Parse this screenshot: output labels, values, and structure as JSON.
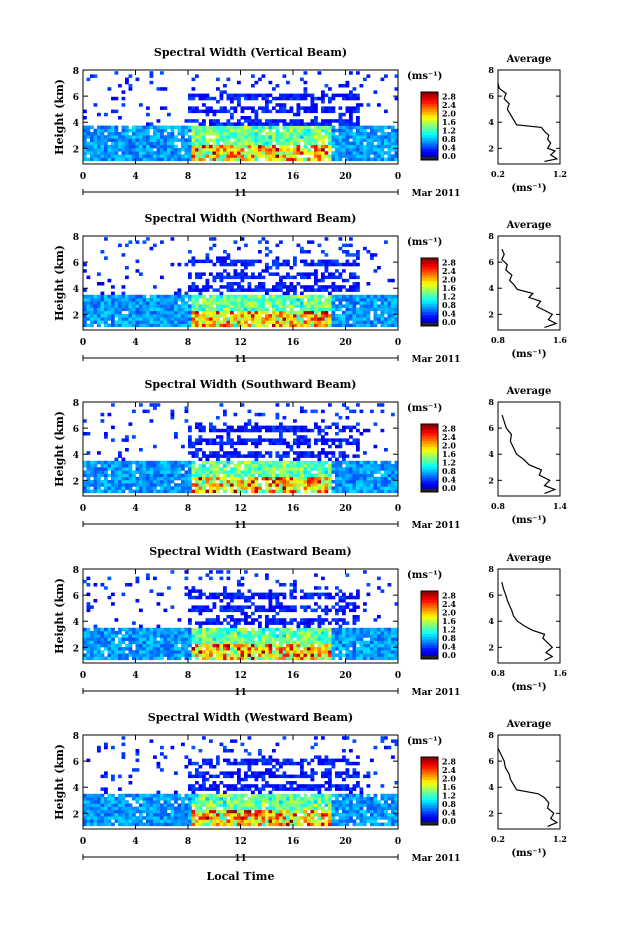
{
  "figure": {
    "xlabel": "Local Time",
    "date_label": "Mar 2011",
    "day_label": "11",
    "unit_label": "(ms⁻¹)",
    "avg_title": "Average",
    "avg_xlabel": "(ms⁻¹)"
  },
  "chart_data": [
    {
      "type": "heatmap",
      "title": "Spectral Width (Vertical Beam)",
      "ylabel": "Height (km)",
      "x_ticks": [
        "0",
        "4",
        "8",
        "12",
        "16",
        "20",
        "0"
      ],
      "xlim": [
        0,
        24
      ],
      "y_ticks": [
        "2",
        "4",
        "6",
        "8"
      ],
      "ylim": [
        0.8,
        8
      ],
      "colorbar": {
        "range": [
          0,
          2.8
        ],
        "tick_labels": [
          "0.0",
          "0.4",
          "0.8",
          "1.2",
          "1.6",
          "2.0",
          "2.4",
          "2.8"
        ]
      },
      "dense_top_km": 3.7,
      "scatter_top_km": 6.3,
      "average_profile": {
        "xlim": [
          0.2,
          1.2
        ],
        "x_tick_labels": [
          "0.2",
          "1.2"
        ],
        "y_tick_labels": [
          "2",
          "4",
          "6",
          "8"
        ],
        "points": [
          [
            0.95,
            1.0
          ],
          [
            1.15,
            1.2
          ],
          [
            1.05,
            1.5
          ],
          [
            1.12,
            1.8
          ],
          [
            1.0,
            2.0
          ],
          [
            1.05,
            2.4
          ],
          [
            1.0,
            2.7
          ],
          [
            1.02,
            3.0
          ],
          [
            0.95,
            3.3
          ],
          [
            0.9,
            3.6
          ],
          [
            0.5,
            3.8
          ],
          [
            0.45,
            4.2
          ],
          [
            0.4,
            4.6
          ],
          [
            0.35,
            5.0
          ],
          [
            0.38,
            5.4
          ],
          [
            0.3,
            5.8
          ],
          [
            0.33,
            6.2
          ],
          [
            0.22,
            6.6
          ],
          [
            0.2,
            7.0
          ]
        ]
      }
    },
    {
      "type": "heatmap",
      "title": "Spectral Width (Northward Beam)",
      "ylabel": "Height (km)",
      "x_ticks": [
        "0",
        "4",
        "8",
        "12",
        "16",
        "20",
        "0"
      ],
      "xlim": [
        0,
        24
      ],
      "y_ticks": [
        "2",
        "4",
        "6",
        "8"
      ],
      "ylim": [
        0.8,
        8
      ],
      "colorbar": {
        "range": [
          0,
          2.8
        ],
        "tick_labels": [
          "0.0",
          "0.4",
          "0.8",
          "1.2",
          "1.6",
          "2.0",
          "2.4",
          "2.8"
        ]
      },
      "dense_top_km": 3.6,
      "scatter_top_km": 6.5,
      "average_profile": {
        "xlim": [
          0.8,
          1.6
        ],
        "x_tick_labels": [
          "0.8",
          "1.6"
        ],
        "y_tick_labels": [
          "2",
          "4",
          "6",
          "8"
        ],
        "points": [
          [
            1.4,
            1.0
          ],
          [
            1.55,
            1.3
          ],
          [
            1.45,
            1.6
          ],
          [
            1.5,
            2.0
          ],
          [
            1.4,
            2.3
          ],
          [
            1.3,
            2.6
          ],
          [
            1.35,
            3.0
          ],
          [
            1.2,
            3.3
          ],
          [
            1.25,
            3.6
          ],
          [
            1.05,
            3.9
          ],
          [
            1.0,
            4.3
          ],
          [
            0.95,
            4.6
          ],
          [
            0.98,
            5.0
          ],
          [
            0.9,
            5.4
          ],
          [
            0.92,
            5.8
          ],
          [
            0.85,
            6.2
          ],
          [
            0.88,
            6.6
          ],
          [
            0.85,
            7.0
          ]
        ]
      }
    },
    {
      "type": "heatmap",
      "title": "Spectral Width (Southward Beam)",
      "ylabel": "Height (km)",
      "x_ticks": [
        "0",
        "4",
        "8",
        "12",
        "16",
        "20",
        "0"
      ],
      "xlim": [
        0,
        24
      ],
      "y_ticks": [
        "2",
        "4",
        "6",
        "8"
      ],
      "ylim": [
        0.8,
        8
      ],
      "colorbar": {
        "range": [
          0,
          2.8
        ],
        "tick_labels": [
          "0.0",
          "0.4",
          "0.8",
          "1.2",
          "1.6",
          "2.0",
          "2.4",
          "2.8"
        ]
      },
      "dense_top_km": 3.6,
      "scatter_top_km": 6.5,
      "average_profile": {
        "xlim": [
          0.8,
          1.4
        ],
        "x_tick_labels": [
          "0.8",
          "1.4"
        ],
        "y_tick_labels": [
          "2",
          "4",
          "6",
          "8"
        ],
        "points": [
          [
            1.25,
            1.0
          ],
          [
            1.35,
            1.3
          ],
          [
            1.25,
            1.6
          ],
          [
            1.3,
            2.0
          ],
          [
            1.2,
            2.4
          ],
          [
            1.22,
            2.8
          ],
          [
            1.1,
            3.2
          ],
          [
            1.05,
            3.6
          ],
          [
            0.98,
            4.0
          ],
          [
            0.95,
            4.5
          ],
          [
            0.92,
            5.0
          ],
          [
            0.93,
            5.5
          ],
          [
            0.88,
            6.0
          ],
          [
            0.86,
            6.5
          ],
          [
            0.84,
            7.0
          ]
        ]
      }
    },
    {
      "type": "heatmap",
      "title": "Spectral Width (Eastward Beam)",
      "ylabel": "Height (km)",
      "x_ticks": [
        "0",
        "4",
        "8",
        "12",
        "16",
        "20",
        "0"
      ],
      "xlim": [
        0,
        24
      ],
      "y_ticks": [
        "2",
        "4",
        "6",
        "8"
      ],
      "ylim": [
        0.8,
        8
      ],
      "colorbar": {
        "range": [
          0,
          2.8
        ],
        "tick_labels": [
          "0.0",
          "0.4",
          "0.8",
          "1.2",
          "1.6",
          "2.0",
          "2.4",
          "2.8"
        ]
      },
      "dense_top_km": 3.6,
      "scatter_top_km": 6.5,
      "average_profile": {
        "xlim": [
          0.8,
          1.6
        ],
        "x_tick_labels": [
          "0.8",
          "1.6"
        ],
        "y_tick_labels": [
          "2",
          "4",
          "6",
          "8"
        ],
        "points": [
          [
            1.4,
            1.0
          ],
          [
            1.5,
            1.3
          ],
          [
            1.42,
            1.6
          ],
          [
            1.5,
            2.0
          ],
          [
            1.45,
            2.3
          ],
          [
            1.38,
            2.7
          ],
          [
            1.4,
            3.0
          ],
          [
            1.25,
            3.3
          ],
          [
            1.15,
            3.6
          ],
          [
            1.05,
            4.0
          ],
          [
            1.0,
            4.4
          ],
          [
            0.98,
            4.8
          ],
          [
            0.95,
            5.2
          ],
          [
            0.92,
            5.6
          ],
          [
            0.9,
            6.0
          ],
          [
            0.87,
            6.5
          ],
          [
            0.85,
            7.0
          ]
        ]
      }
    },
    {
      "type": "heatmap",
      "title": "Spectral Width (Westward Beam)",
      "ylabel": "Height (km)",
      "x_ticks": [
        "0",
        "4",
        "8",
        "12",
        "16",
        "20",
        "0"
      ],
      "xlim": [
        0,
        24
      ],
      "y_ticks": [
        "2",
        "4",
        "6",
        "8"
      ],
      "ylim": [
        0.8,
        8
      ],
      "colorbar": {
        "range": [
          0,
          2.8
        ],
        "tick_labels": [
          "0.0",
          "0.4",
          "0.8",
          "1.2",
          "1.6",
          "2.0",
          "2.4",
          "2.8"
        ]
      },
      "dense_top_km": 3.6,
      "scatter_top_km": 6.5,
      "average_profile": {
        "xlim": [
          0.2,
          1.2
        ],
        "x_tick_labels": [
          "0.2",
          "1.2"
        ],
        "y_tick_labels": [
          "2",
          "4",
          "6",
          "8"
        ],
        "points": [
          [
            1.0,
            1.0
          ],
          [
            1.15,
            1.3
          ],
          [
            1.05,
            1.6
          ],
          [
            1.1,
            2.0
          ],
          [
            1.0,
            2.4
          ],
          [
            1.02,
            2.8
          ],
          [
            0.95,
            3.2
          ],
          [
            0.85,
            3.5
          ],
          [
            0.5,
            3.8
          ],
          [
            0.45,
            4.2
          ],
          [
            0.4,
            4.6
          ],
          [
            0.38,
            5.0
          ],
          [
            0.32,
            5.5
          ],
          [
            0.3,
            6.0
          ],
          [
            0.25,
            6.5
          ],
          [
            0.2,
            7.0
          ]
        ]
      }
    }
  ]
}
